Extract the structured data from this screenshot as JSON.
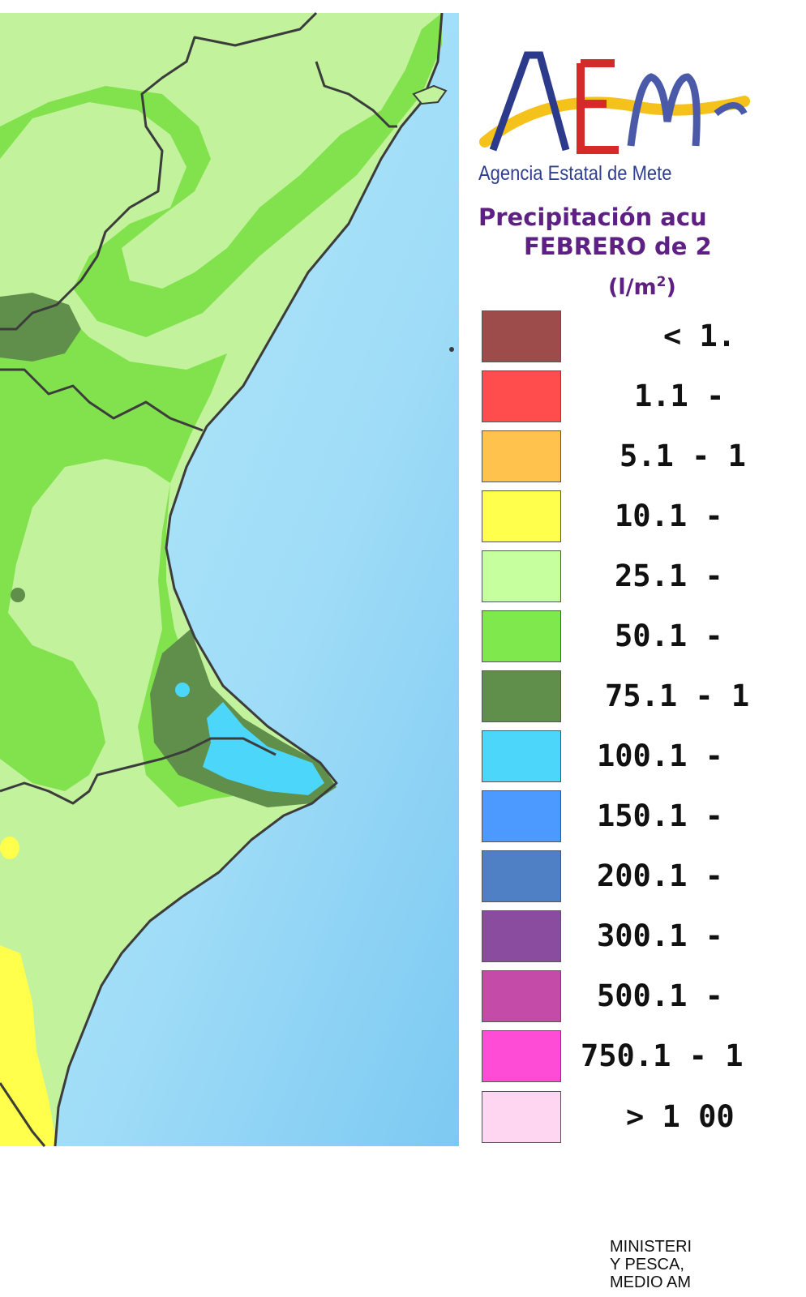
{
  "agency_name": "Agencia Estatal de Mete",
  "logo_text": "AEMe",
  "title": {
    "line1": "Precipitación acu",
    "line2": "FEBRERO de 2",
    "unit_prefix": "(l/m",
    "unit_sup": "2",
    "unit_suffix": ")"
  },
  "legend": [
    {
      "label": "< 1.",
      "color": "#9e4b4b"
    },
    {
      "label": "1.1 -",
      "color": "#ff4c4c"
    },
    {
      "label": "5.1 - 1",
      "color": "#ffc24c"
    },
    {
      "label": "10.1 -",
      "color": "#ffff4c"
    },
    {
      "label": "25.1 -",
      "color": "#c6ff9e"
    },
    {
      "label": "50.1 -",
      "color": "#7ee84c"
    },
    {
      "label": "75.1 - 1",
      "color": "#5f8f4a"
    },
    {
      "label": "100.1 -",
      "color": "#4cd7fa"
    },
    {
      "label": "150.1 -",
      "color": "#4c9aff"
    },
    {
      "label": "200.1 -",
      "color": "#4f7fc4"
    },
    {
      "label": "300.1 -",
      "color": "#8a4c9e"
    },
    {
      "label": "500.1 -",
      "color": "#c44ca8"
    },
    {
      "label": "750.1 - 1",
      "color": "#ff4cd6"
    },
    {
      "label": "> 1 00",
      "color": "#ffd6f2"
    }
  ],
  "ministry": {
    "line1": "MINISTERI",
    "line2": "Y PESCA, ",
    "line3": "MEDIO AM"
  },
  "colors": {
    "sea": "#aee6f8",
    "title": "#5e2082",
    "agency": "#2f3f8f"
  }
}
